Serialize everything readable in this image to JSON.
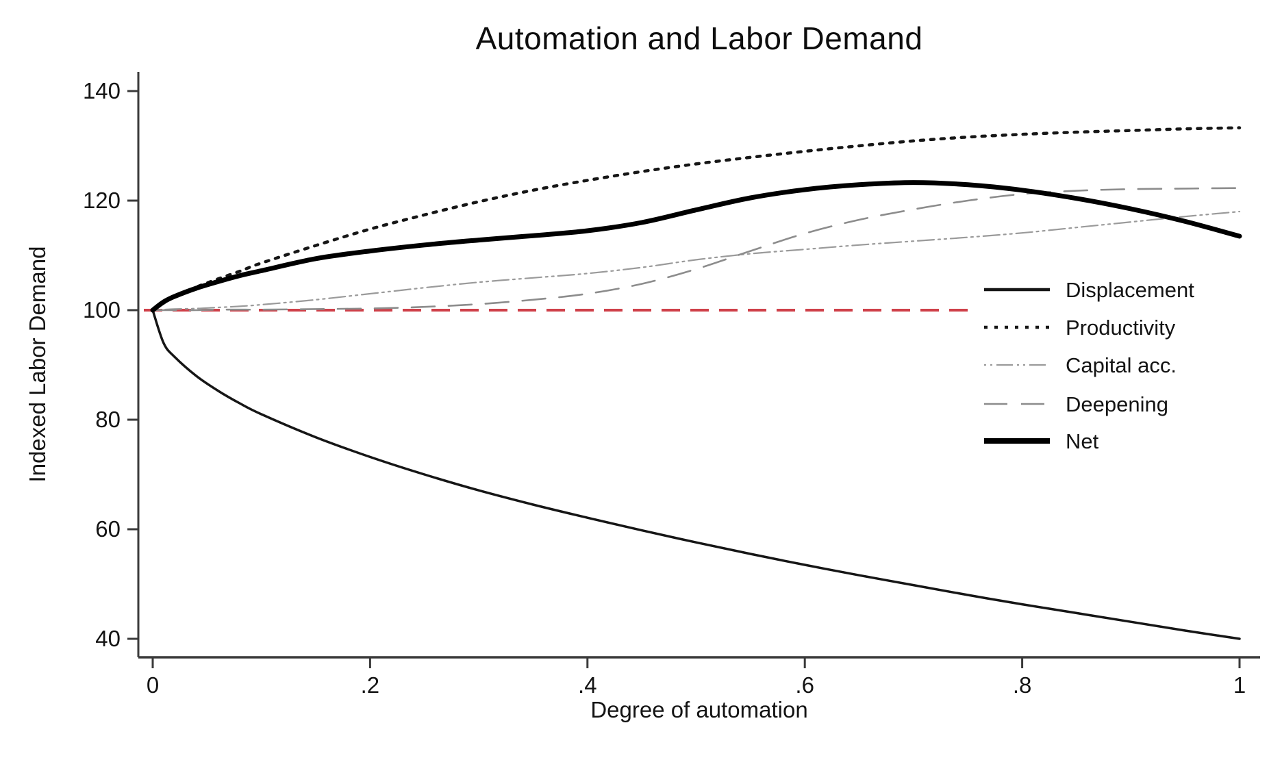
{
  "title": "Automation and Labor Demand",
  "axes": {
    "x": {
      "label": "Degree of automation",
      "ticks": [
        {
          "v": 0,
          "label": "0"
        },
        {
          "v": 0.2,
          "label": ".2"
        },
        {
          "v": 0.4,
          "label": ".4"
        },
        {
          "v": 0.6,
          "label": ".6"
        },
        {
          "v": 0.8,
          "label": ".8"
        },
        {
          "v": 1,
          "label": "1"
        }
      ]
    },
    "y": {
      "label": "Indexed Labor Demand",
      "ticks": [
        {
          "v": 40,
          "label": "40"
        },
        {
          "v": 60,
          "label": "60"
        },
        {
          "v": 80,
          "label": "80"
        },
        {
          "v": 100,
          "label": "100"
        },
        {
          "v": 120,
          "label": "120"
        },
        {
          "v": 140,
          "label": "140"
        }
      ]
    }
  },
  "legend": {
    "items": [
      {
        "key": "displacement",
        "label": "Displacement"
      },
      {
        "key": "productivity",
        "label": "Productivity"
      },
      {
        "key": "capital",
        "label": "Capital acc."
      },
      {
        "key": "deepening",
        "label": "Deepening"
      },
      {
        "key": "net",
        "label": "Net"
      }
    ]
  },
  "colors": {
    "black_line": "#161616",
    "net_line": "#000000",
    "gray_capital": "#9a9a9a",
    "gray_deepening": "#8c8c8c",
    "reference_red": "#cf4049",
    "axis": "#3a3a3a",
    "text": "#141414"
  },
  "chart_data": {
    "type": "line",
    "title": "Automation and Labor Demand",
    "xlabel": "Degree of automation",
    "ylabel": "Indexed Labor Demand",
    "xlim": [
      0,
      1
    ],
    "ylim": [
      40,
      140
    ],
    "grid": false,
    "legend_position": "right-middle",
    "x": [
      0,
      0.01,
      0.02,
      0.04,
      0.06,
      0.08,
      0.1,
      0.15,
      0.2,
      0.25,
      0.3,
      0.35,
      0.4,
      0.45,
      0.5,
      0.55,
      0.6,
      0.65,
      0.7,
      0.75,
      0.8,
      0.85,
      0.9,
      0.95,
      1
    ],
    "series": [
      {
        "key": "displacement",
        "name": "Displacement",
        "values": [
          100,
          94.0,
          91.5,
          88.0,
          85.3,
          83.0,
          81.0,
          76.8,
          73.2,
          70.0,
          67.1,
          64.5,
          62.1,
          59.8,
          57.6,
          55.5,
          53.5,
          51.6,
          49.8,
          48.0,
          46.3,
          44.7,
          43.1,
          41.5,
          40.0
        ]
      },
      {
        "key": "productivity",
        "name": "Productivity",
        "values": [
          100,
          101.3,
          102.4,
          104.2,
          105.7,
          107.1,
          108.6,
          111.8,
          114.8,
          117.4,
          119.8,
          121.9,
          123.7,
          125.3,
          126.7,
          127.9,
          129.0,
          130.0,
          130.9,
          131.6,
          132.1,
          132.5,
          132.8,
          133.1,
          133.3
        ]
      },
      {
        "key": "capital",
        "name": "Capital acc.",
        "values": [
          100,
          100.1,
          100.2,
          100.3,
          100.5,
          100.7,
          101.0,
          101.9,
          103.0,
          104.1,
          105.1,
          105.9,
          106.7,
          107.8,
          109.2,
          110.3,
          111.1,
          111.9,
          112.6,
          113.3,
          114.1,
          115.1,
          116.1,
          117.1,
          118.0
        ]
      },
      {
        "key": "deepening",
        "name": "Deepening",
        "values": [
          100,
          100,
          100,
          100,
          100.1,
          100.1,
          100.1,
          100.2,
          100.3,
          100.6,
          101.1,
          101.9,
          103.0,
          104.8,
          107.5,
          110.8,
          114.0,
          116.5,
          118.4,
          120.0,
          121.2,
          121.8,
          122.1,
          122.2,
          122.3
        ]
      },
      {
        "key": "net",
        "name": "Net",
        "values": [
          100,
          101.5,
          102.5,
          104.0,
          105.2,
          106.3,
          107.2,
          109.4,
          110.8,
          111.9,
          112.8,
          113.6,
          114.5,
          116.0,
          118.3,
          120.5,
          122.0,
          122.9,
          123.3,
          122.9,
          121.9,
          120.4,
          118.5,
          116.2,
          113.5
        ]
      }
    ],
    "reference_line": {
      "y": 100,
      "color": "#cf4049",
      "style": "dashed"
    }
  }
}
